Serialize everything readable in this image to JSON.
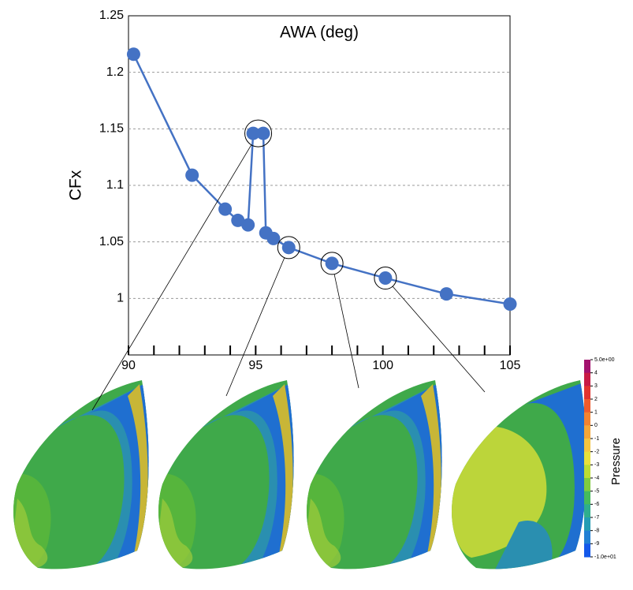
{
  "chart_data": {
    "type": "line",
    "title": "AWA (deg)",
    "y_label": "CFx",
    "x": [
      90.2,
      92.5,
      93.8,
      94.3,
      94.7,
      94.9,
      95.3,
      95.4,
      95.7,
      96.3,
      98.0,
      100.1,
      102.5,
      105.0
    ],
    "values": [
      1.216,
      1.109,
      1.079,
      1.069,
      1.065,
      1.146,
      1.146,
      1.058,
      1.053,
      1.045,
      1.031,
      1.018,
      1.004,
      0.995
    ],
    "color": "#4472c4",
    "xlim": [
      90,
      105
    ],
    "xticks": [
      90,
      95,
      100,
      105
    ],
    "x_minor_ticks": [
      91,
      92,
      93,
      94,
      96,
      97,
      98,
      99,
      101,
      102,
      103,
      104
    ],
    "ylim": [
      0.95,
      1.25
    ],
    "yticks": [
      1,
      1.05,
      1.1,
      1.15,
      1.2,
      1.25
    ],
    "grid": true,
    "colorbar": {
      "title": "Pressure",
      "clim": [
        -10,
        5
      ],
      "ticks": [
        {
          "value": 5,
          "label": "5.0e+00"
        },
        4,
        3,
        2,
        1,
        0,
        -1,
        -2,
        -3,
        -4,
        -5,
        -6,
        -7,
        -8,
        -9,
        {
          "value": -10,
          "label": "-1.0e+01"
        }
      ],
      "colors": [
        "#a3126e",
        "#c81b45",
        "#e2342f",
        "#ef5b2c",
        "#f3832f",
        "#f5a637",
        "#f4c540",
        "#e8e03a",
        "#bcdc33",
        "#7fcc3e",
        "#45bb5c",
        "#2fae8c",
        "#239db3",
        "#2180d4",
        "#1458ea"
      ]
    }
  }
}
